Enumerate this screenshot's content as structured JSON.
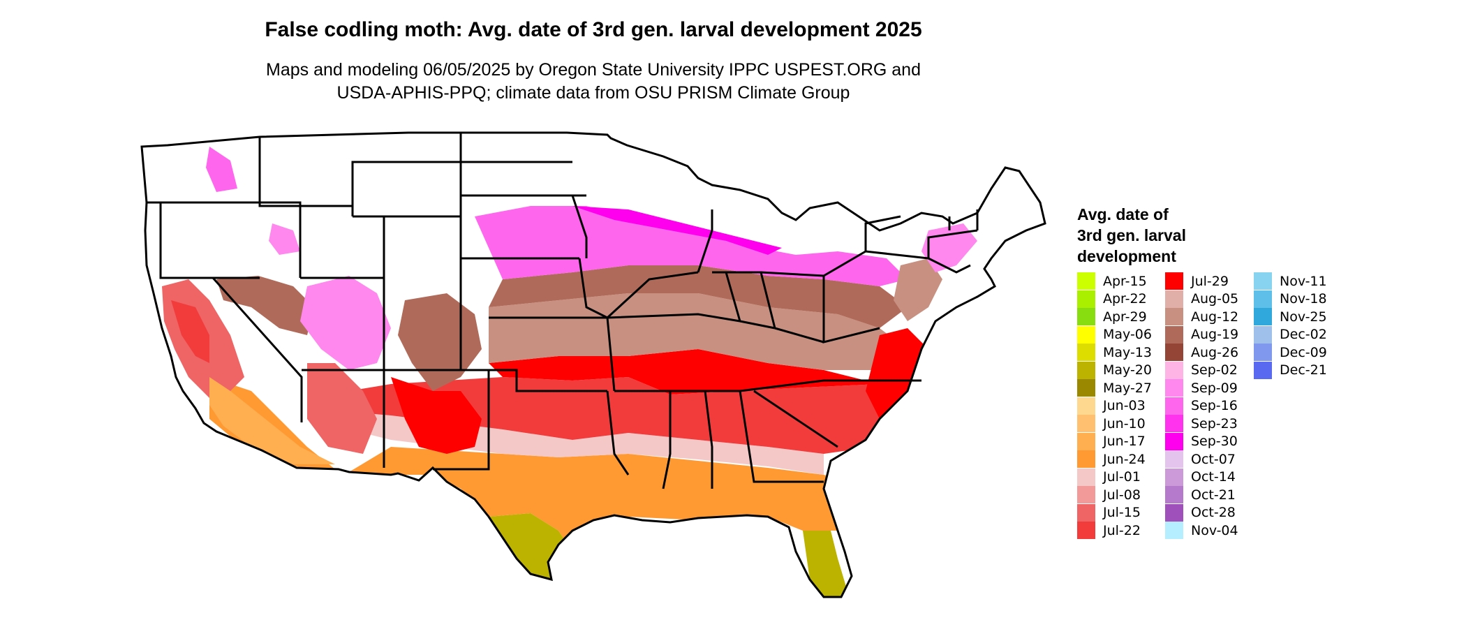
{
  "header": {
    "title": "False codling moth: Avg. date of 3rd gen. larval development 2025",
    "subtitle_line1": "Maps and modeling 06/05/2025 by Oregon State University IPPC USPEST.ORG and",
    "subtitle_line2": "USDA-APHIS-PPQ; climate data from OSU PRISM Climate Group"
  },
  "legend": {
    "title_line1": "Avg. date of",
    "title_line2": "3rd gen. larval",
    "title_line3": "development",
    "items": [
      {
        "label": "Apr-15",
        "color": "#ccff00"
      },
      {
        "label": "Apr-22",
        "color": "#aaee00"
      },
      {
        "label": "Apr-29",
        "color": "#88dd11"
      },
      {
        "label": "May-06",
        "color": "#ffff00"
      },
      {
        "label": "May-13",
        "color": "#dddd00"
      },
      {
        "label": "May-20",
        "color": "#bbb300"
      },
      {
        "label": "May-27",
        "color": "#998800"
      },
      {
        "label": "Jun-03",
        "color": "#ffd890"
      },
      {
        "label": "Jun-10",
        "color": "#ffc070"
      },
      {
        "label": "Jun-17",
        "color": "#ffae50"
      },
      {
        "label": "Jun-24",
        "color": "#ff9a33"
      },
      {
        "label": "Jul-01",
        "color": "#f5c8c8"
      },
      {
        "label": "Jul-08",
        "color": "#f29a9a"
      },
      {
        "label": "Jul-15",
        "color": "#ef6464"
      },
      {
        "label": "Jul-22",
        "color": "#f23c3c"
      },
      {
        "label": "Jul-29",
        "color": "#ff0000"
      },
      {
        "label": "Aug-05",
        "color": "#e0b0a8"
      },
      {
        "label": "Aug-12",
        "color": "#c89080"
      },
      {
        "label": "Aug-19",
        "color": "#b06a5a"
      },
      {
        "label": "Aug-26",
        "color": "#954535"
      },
      {
        "label": "Sep-02",
        "color": "#ffb4e6"
      },
      {
        "label": "Sep-09",
        "color": "#ff88ee"
      },
      {
        "label": "Sep-16",
        "color": "#ff66ee"
      },
      {
        "label": "Sep-23",
        "color": "#ff33ee"
      },
      {
        "label": "Sep-30",
        "color": "#ff00ee"
      },
      {
        "label": "Oct-07",
        "color": "#e4c4ec"
      },
      {
        "label": "Oct-14",
        "color": "#cc9ad8"
      },
      {
        "label": "Oct-21",
        "color": "#b57acc"
      },
      {
        "label": "Oct-28",
        "color": "#a050bb"
      },
      {
        "label": "Nov-04",
        "color": "#b4eeff"
      },
      {
        "label": "Nov-11",
        "color": "#88d4f0"
      },
      {
        "label": "Nov-18",
        "color": "#5ec0e8"
      },
      {
        "label": "Nov-25",
        "color": "#30a8dc"
      },
      {
        "label": "Dec-02",
        "color": "#a0c0ec"
      },
      {
        "label": "Dec-09",
        "color": "#8098ee"
      },
      {
        "label": "Dec-21",
        "color": "#5a6af0"
      }
    ]
  }
}
